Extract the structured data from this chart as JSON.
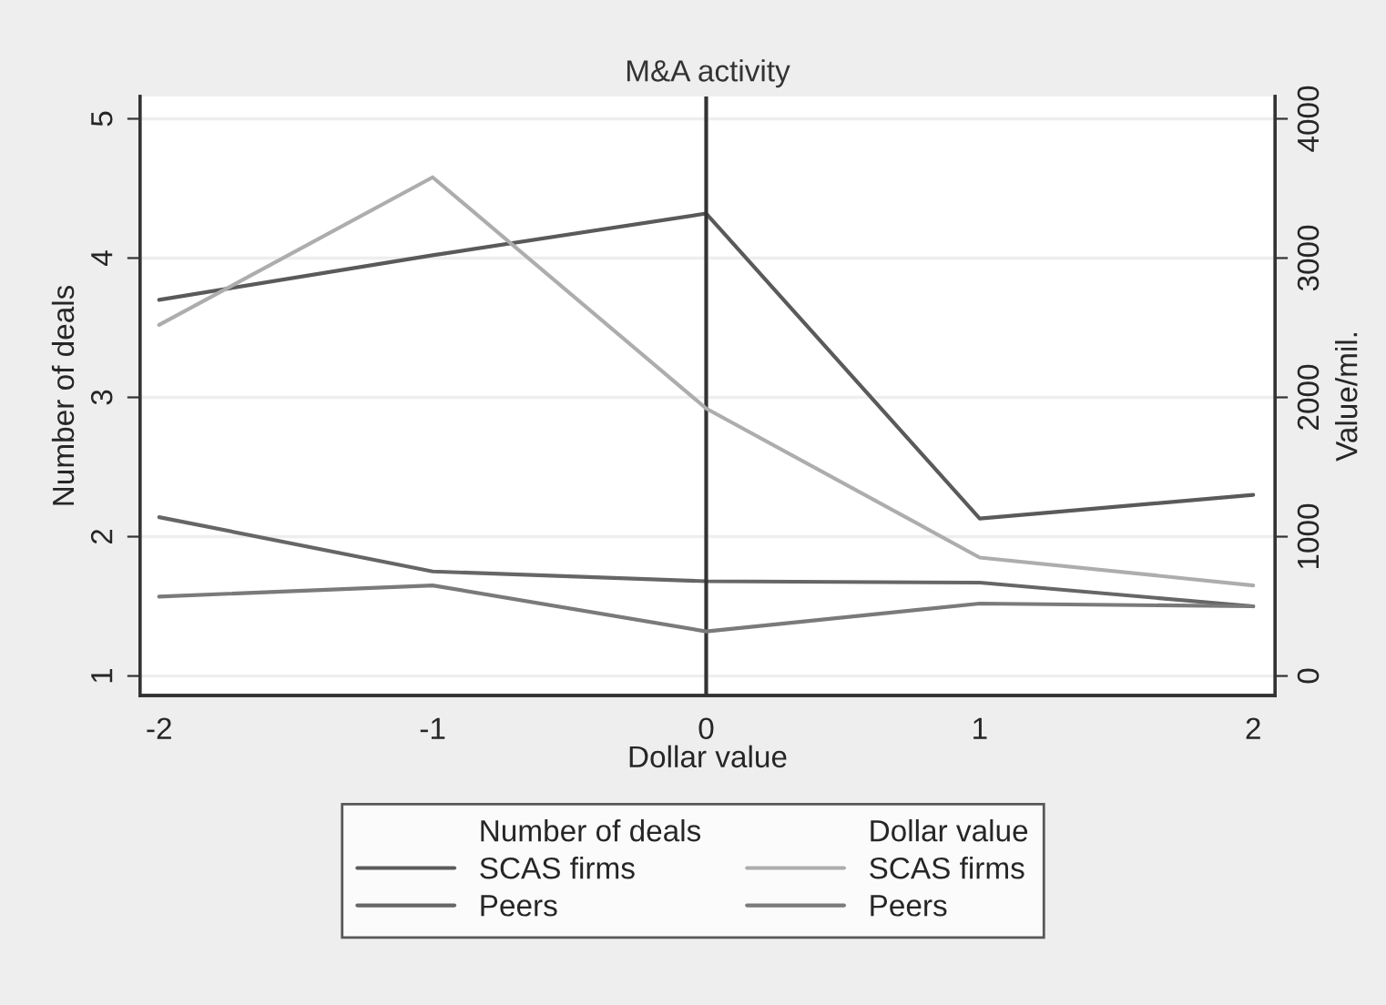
{
  "chart_data": {
    "type": "line",
    "title": "M&A activity",
    "xlabel": "Dollar value",
    "ylabel": "Number of deals",
    "y2label": "Value/mil.",
    "legend_title": [
      "Number of deals",
      "Dollar value"
    ],
    "x": [
      -2,
      -1,
      0,
      1,
      2
    ],
    "series": [
      {
        "name": "SCAS firms",
        "color": "#5a5a5a",
        "values": [
          3.7,
          4.02,
          4.32,
          2.13,
          2.3
        ]
      },
      {
        "name": "Peers",
        "color": "#666666",
        "values": [
          2.14,
          1.75,
          1.68,
          1.67,
          1.5
        ]
      },
      {
        "name": "SCAS firms",
        "color": "#adadad",
        "axis": "y2",
        "values": [
          2520,
          3580,
          1920,
          850,
          650
        ]
      },
      {
        "name": "Peers",
        "color": "#7a7a7a",
        "axis": "y2",
        "values": [
          570,
          650,
          320,
          520,
          500
        ]
      }
    ],
    "xlim": [
      -2.07,
      2.08
    ],
    "xticks": [
      -2,
      -1,
      0,
      1,
      2
    ],
    "ylim": [
      0.86,
      5.16
    ],
    "yticks": [
      1,
      2,
      3,
      4,
      5
    ],
    "y2lim": [
      -140,
      4160
    ],
    "y2ticks": [
      0,
      1000,
      2000,
      3000,
      4000
    ],
    "ref_lines": [
      {
        "axis": "x",
        "value": 0,
        "color": "#333333"
      }
    ],
    "grid": "y",
    "legend": "bottom",
    "line_style": "solid",
    "marker": "none"
  }
}
